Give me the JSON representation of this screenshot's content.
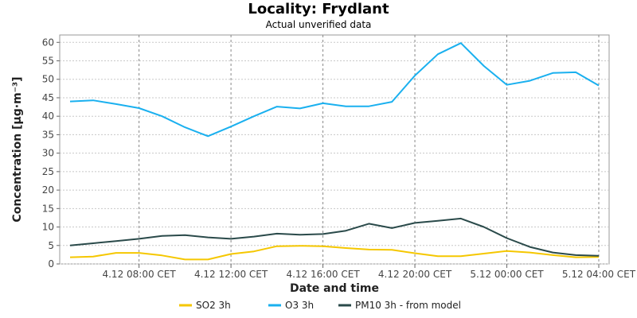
{
  "chart_data": {
    "type": "line",
    "title": "Locality: Frydlant",
    "subtitle": "Actual unverified data",
    "xlabel": "Date and time",
    "ylabel": "Concentration [µg·m⁻³]",
    "ylim": [
      0,
      62
    ],
    "yticks": [
      0,
      5,
      10,
      15,
      20,
      25,
      30,
      35,
      40,
      45,
      50,
      55,
      60
    ],
    "xtick_labels": [
      "4.12 08:00 CET",
      "4.12 12:00 CET",
      "4.12 16:00 CET",
      "4.12 20:00 CET",
      "5.12 00:00 CET",
      "5.12 04:00 CET"
    ],
    "x": [
      "4.12 05:00",
      "4.12 06:00",
      "4.12 07:00",
      "4.12 08:00",
      "4.12 09:00",
      "4.12 10:00",
      "4.12 11:00",
      "4.12 12:00",
      "4.12 13:00",
      "4.12 14:00",
      "4.12 15:00",
      "4.12 16:00",
      "4.12 17:00",
      "4.12 18:00",
      "4.12 19:00",
      "4.12 20:00",
      "4.12 21:00",
      "4.12 22:00",
      "4.12 23:00",
      "5.12 00:00",
      "5.12 01:00",
      "5.12 02:00",
      "5.12 03:00",
      "5.12 04:00"
    ],
    "grid": true,
    "legend_position": "bottom-center",
    "series": [
      {
        "name": "SO2 3h",
        "color": "#f5c700",
        "values": [
          1.8,
          2.0,
          3.0,
          3.0,
          2.3,
          1.2,
          1.2,
          2.7,
          3.4,
          4.8,
          4.9,
          4.8,
          4.3,
          3.9,
          3.8,
          2.9,
          2.1,
          2.1,
          2.8,
          3.5,
          3.1,
          2.4,
          1.8,
          1.9
        ]
      },
      {
        "name": "O3 3h",
        "color": "#1ab0ef",
        "values": [
          44.0,
          44.3,
          43.3,
          42.2,
          40.0,
          37.0,
          34.6,
          37.2,
          40.0,
          42.6,
          42.1,
          43.5,
          42.7,
          42.7,
          43.9,
          51.0,
          56.8,
          59.8,
          53.6,
          48.5,
          49.6,
          51.7,
          51.9,
          48.3
        ]
      },
      {
        "name": "PM10 3h - from model",
        "color": "#2a4a4a",
        "values": [
          5.0,
          5.6,
          6.2,
          6.8,
          7.6,
          7.8,
          7.2,
          6.8,
          7.4,
          8.2,
          7.9,
          8.1,
          9.0,
          10.9,
          9.7,
          11.1,
          11.7,
          12.3,
          10.0,
          7.0,
          4.6,
          3.1,
          2.4,
          2.2
        ]
      }
    ]
  }
}
